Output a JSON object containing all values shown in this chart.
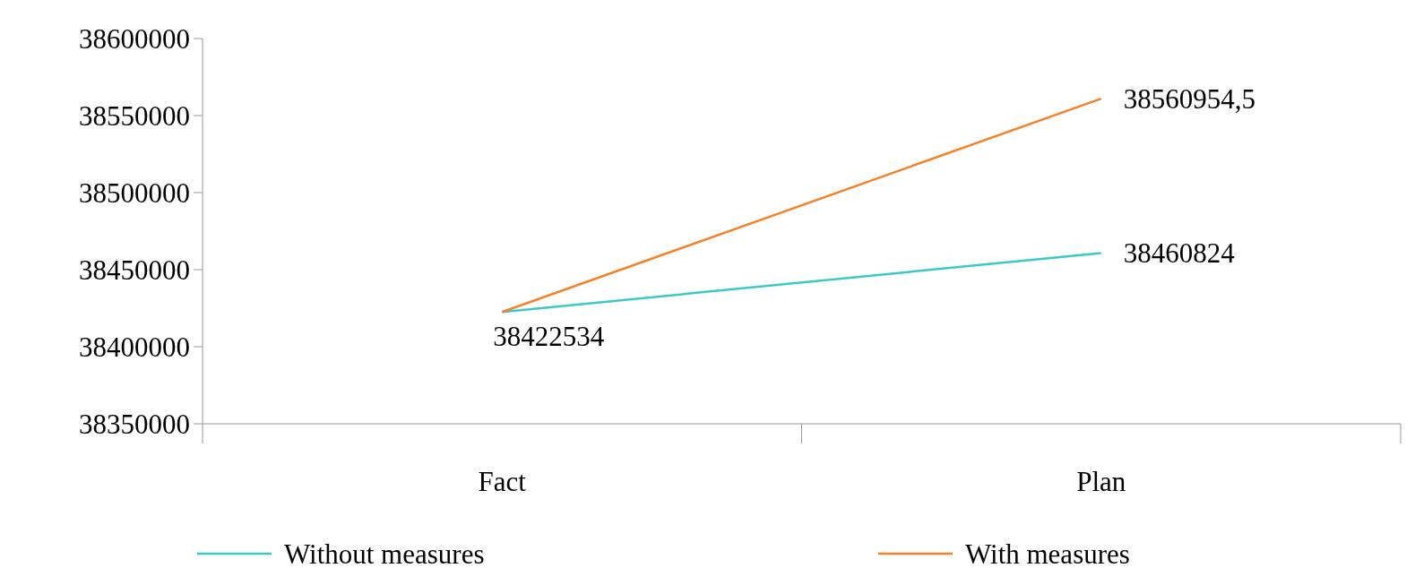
{
  "chart_data": {
    "type": "line",
    "categories": [
      "Fact",
      "Plan"
    ],
    "series": [
      {
        "name": "Without measures",
        "color": "#3cc8c8",
        "values": [
          38422534,
          38460824
        ],
        "value_labels": [
          "38422534",
          "38460824"
        ]
      },
      {
        "name": "With measures",
        "color": "#f5822a",
        "values": [
          38422534,
          38560954.5
        ],
        "value_labels": [
          null,
          "38560954,5"
        ]
      }
    ],
    "ylim": [
      38350000,
      38600000
    ],
    "yticks": [
      38350000,
      38400000,
      38450000,
      38500000,
      38550000,
      38600000
    ],
    "grid": false,
    "legend": "bottom",
    "marker": "none",
    "line_style": "solid"
  }
}
